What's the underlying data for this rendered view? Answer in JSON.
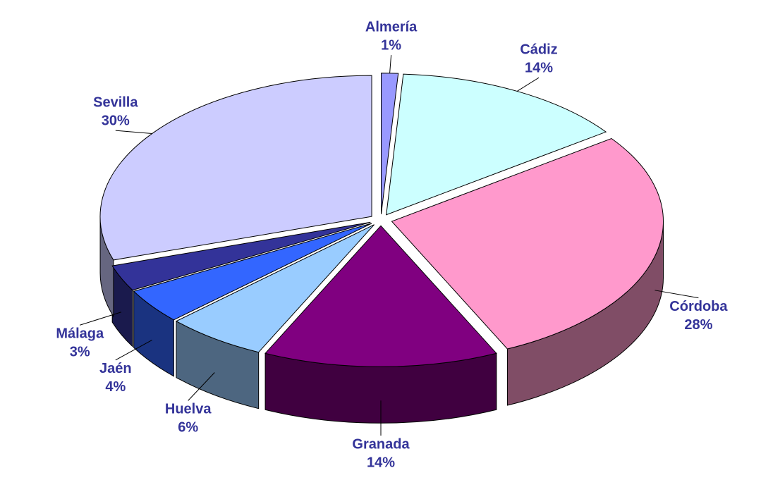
{
  "chart_data": {
    "type": "pie",
    "categories": [
      "Almería",
      "Cádiz",
      "Córdoba",
      "Granada",
      "Huelva",
      "Jaén",
      "Málaga",
      "Sevilla"
    ],
    "values": [
      1,
      14,
      28,
      14,
      6,
      4,
      3,
      30
    ],
    "value_labels": [
      "1%",
      "14%",
      "28%",
      "14%",
      "6%",
      "4%",
      "3%",
      "30%"
    ],
    "colors": [
      "#9999ff",
      "#ccffff",
      "#ff99cc",
      "#800080",
      "#99ccff",
      "#3366ff",
      "#333399",
      "#ccccff"
    ]
  }
}
